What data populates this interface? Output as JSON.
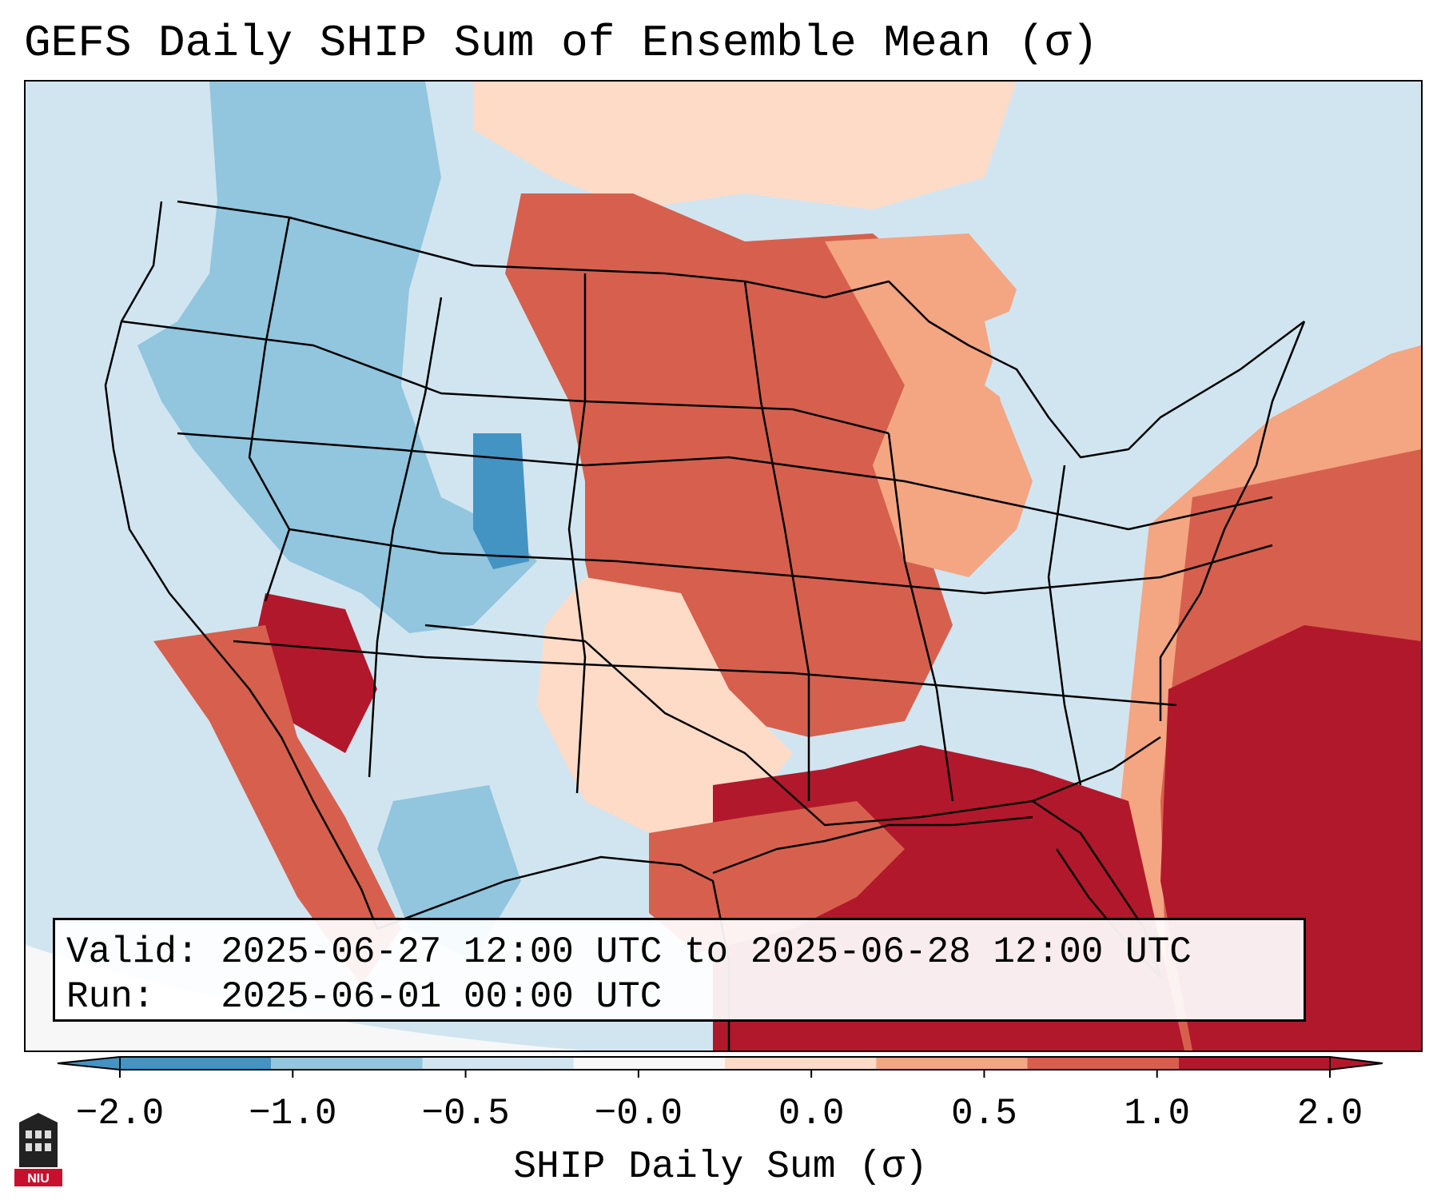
{
  "title": "GEFS Daily SHIP Sum of Ensemble Mean (σ)",
  "info": {
    "valid_line": "Valid: 2025-06-27 12:00 UTC to 2025-06-28 12:00 UTC",
    "run_line": "Run:   2025-06-01 00:00 UTC"
  },
  "colorbar": {
    "label": "SHIP Daily Sum (σ)",
    "tick_labels": [
      "−2.0",
      "−1.0",
      "−0.5",
      "−0.0",
      "0.0",
      "0.5",
      "1.0",
      "2.0"
    ],
    "bin_colors": [
      "#4393c3",
      "#92c5de",
      "#d1e5f0",
      "#f7f7f7",
      "#fddbc7",
      "#f4a582",
      "#d6604d",
      "#b2182b"
    ]
  },
  "logo": {
    "text": "NIU",
    "color": "#c8102e"
  },
  "map": {
    "region": "Contiguous United States",
    "field_colors": {
      "strong_neg": "#4393c3",
      "mod_neg": "#92c5de",
      "weak_neg": "#d1e5f0",
      "near_zero": "#f7f7f7",
      "weak_pos": "#fddbc7",
      "mod_pos": "#f4a582",
      "high_pos": "#d6604d",
      "strong_pos": "#b2182b"
    }
  }
}
